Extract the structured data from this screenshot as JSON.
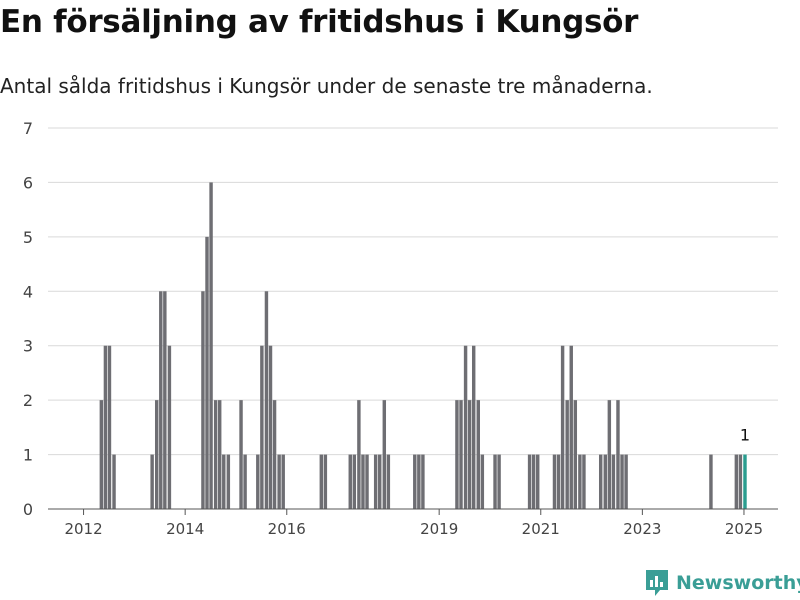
{
  "title": "En försäljning av fritidshus i Kungsör",
  "subtitle": "Antal sålda fritidshus i Kungsör under de senaste tre månaderna.",
  "brand": {
    "name": "Newsworthy"
  },
  "colors": {
    "bar": "#6e6e73",
    "highlight": "#2a9d8f",
    "grid": "#d9d9d9",
    "brand": "#3a9e96"
  },
  "chart_data": {
    "type": "bar",
    "ylim": [
      0,
      7
    ],
    "yticks": [
      0,
      1,
      2,
      3,
      4,
      5,
      6,
      7
    ],
    "xlim": [
      2011.3,
      2025.67
    ],
    "xticks": [
      2012,
      2014,
      2016,
      2019,
      2021,
      2023,
      2025
    ],
    "bar_width_years": 0.0833,
    "grid": true,
    "series": [
      {
        "x": [
          2012.35,
          2012.43,
          2012.51,
          2012.6,
          2013.35,
          2013.44,
          2013.52,
          2013.6,
          2013.69,
          2014.35,
          2014.43,
          2014.51,
          2014.6,
          2014.68,
          2014.76,
          2014.85,
          2015.1,
          2015.18,
          2015.43,
          2015.51,
          2015.6,
          2015.68,
          2015.76,
          2015.85,
          2015.93,
          2016.68,
          2016.76,
          2017.25,
          2017.33,
          2017.42,
          2017.5,
          2017.58,
          2017.75,
          2017.83,
          2017.92,
          2018.0,
          2018.52,
          2018.6,
          2018.68,
          2019.35,
          2019.43,
          2019.52,
          2019.6,
          2019.68,
          2019.77,
          2019.85,
          2020.1,
          2020.18,
          2020.78,
          2020.86,
          2020.94,
          2021.27,
          2021.35,
          2021.43,
          2021.52,
          2021.6,
          2021.68,
          2021.77,
          2021.85,
          2022.18,
          2022.27,
          2022.35,
          2022.43,
          2022.52,
          2022.6,
          2022.68,
          2024.35,
          2024.85,
          2024.93
        ],
        "values": [
          2,
          3,
          3,
          1,
          1,
          2,
          4,
          4,
          3,
          4,
          5,
          6,
          2,
          2,
          1,
          1,
          2,
          1,
          1,
          3,
          4,
          3,
          2,
          1,
          1,
          1,
          1,
          1,
          1,
          2,
          1,
          1,
          1,
          1,
          2,
          1,
          1,
          1,
          1,
          2,
          2,
          3,
          2,
          3,
          2,
          1,
          1,
          1,
          1,
          1,
          1,
          1,
          1,
          3,
          2,
          3,
          2,
          1,
          1,
          1,
          1,
          2,
          1,
          2,
          1,
          1,
          1,
          1,
          1
        ]
      }
    ],
    "highlight": {
      "x": 2025.02,
      "value": 1,
      "label": "1"
    }
  }
}
